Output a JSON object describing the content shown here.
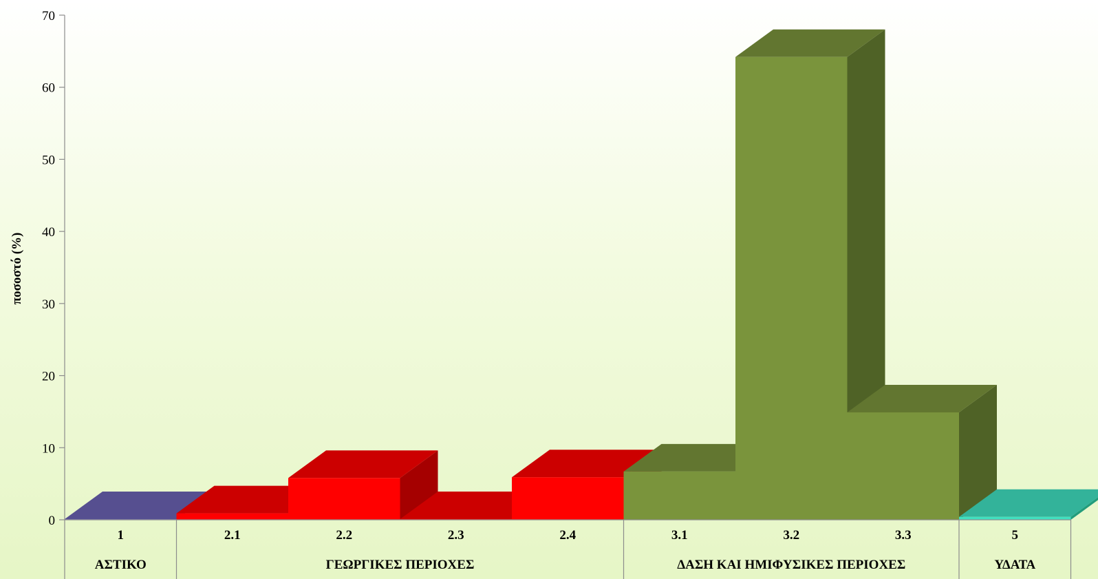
{
  "chart_data": {
    "type": "bar",
    "style": "3d-column",
    "ylabel": "ποσοστό (%)",
    "xlabel": "",
    "ylim": [
      0,
      70
    ],
    "yticks": [
      0,
      10,
      20,
      30,
      40,
      50,
      60,
      70
    ],
    "grid": false,
    "legend": "none",
    "categories": [
      "1",
      "2.1",
      "2.2",
      "2.3",
      "2.4",
      "3.1",
      "3.2",
      "3.3",
      "5"
    ],
    "values": [
      0.1,
      0.9,
      5.8,
      0.1,
      5.9,
      6.7,
      64.2,
      14.9,
      0.4
    ],
    "groups": [
      {
        "label": "ΑΣΤΙΚΟ",
        "categories": [
          "1"
        ],
        "color": "#6159aa",
        "front": "#6b63b4",
        "side": "#4b4587"
      },
      {
        "label": "ΓΕΩΡΓΙΚΕΣ ΠΕΡΙΟΧΕΣ",
        "categories": [
          "2.1",
          "2.2",
          "2.3",
          "2.4"
        ],
        "color": "#ff0000",
        "front": "#ff0000",
        "side": "#a50000"
      },
      {
        "label": "ΔΑΣΗ ΚΑΙ ΗΜΙΦΥΣΙΚΕΣ ΠΕΡΙΟΧΕΣ",
        "categories": [
          "3.1",
          "3.2",
          "3.3"
        ],
        "color": "#7a943c",
        "front": "#7a943c",
        "side": "#4f6226"
      },
      {
        "label": "ΥΔΑΤΑ",
        "categories": [
          "5"
        ],
        "color": "#33c9a0",
        "front": "#40e0c0",
        "side": "#229c7c"
      }
    ]
  }
}
